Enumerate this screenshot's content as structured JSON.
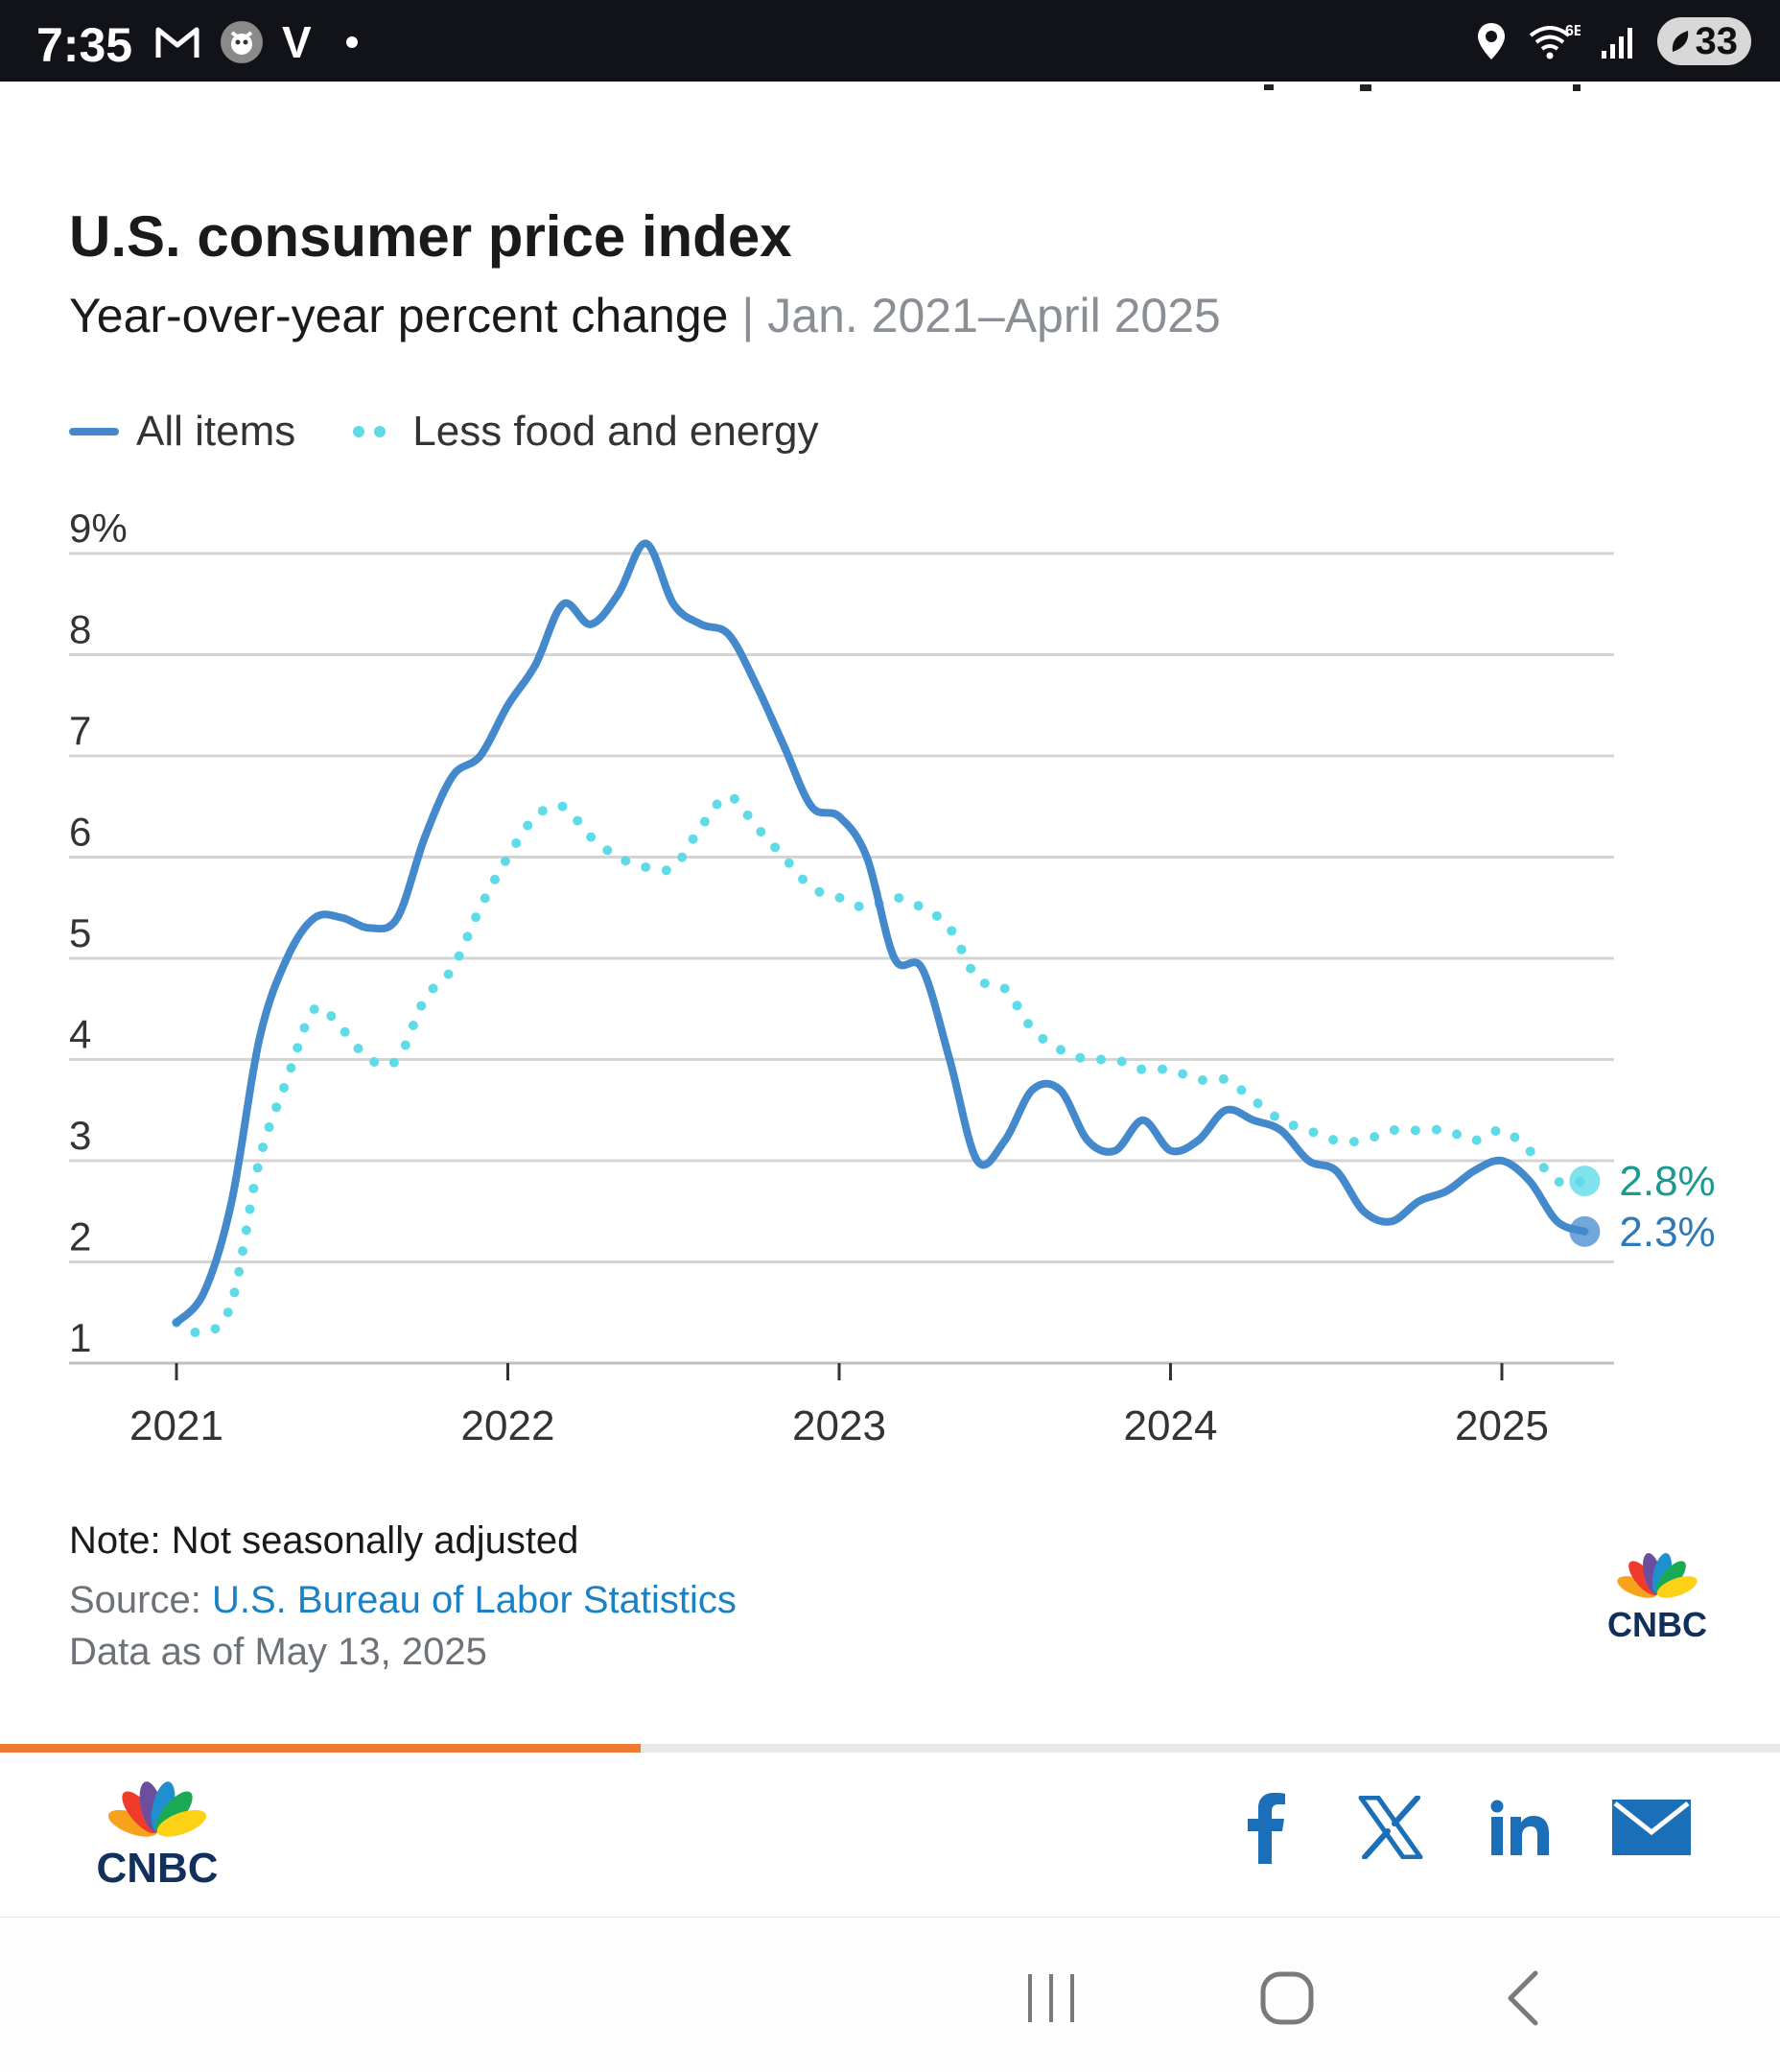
{
  "status_bar": {
    "time": "7:35",
    "carrier_mark": "V",
    "network": "6E",
    "battery": "33",
    "icons": [
      "gmail-icon",
      "app-notification-icon",
      "location-icon",
      "wifi-icon",
      "signal-icon",
      "battery-saver-icon"
    ]
  },
  "chart": {
    "title": "U.S. consumer price index",
    "subtitle": "Year-over-year percent change",
    "subtitle_separator": "|",
    "date_range": "Jan. 2021–April 2025",
    "legend": [
      "All items",
      "Less food and energy"
    ],
    "note": "Note: Not seasonally adjusted",
    "source_label": "Source:",
    "source_name": "U.S. Bureau of Labor Statistics",
    "as_of": "Data as of May 13, 2025"
  },
  "chart_data": {
    "type": "line",
    "title": "U.S. consumer price index",
    "subtitle": "Year-over-year percent change | Jan. 2021–April 2025",
    "xlabel": "",
    "ylabel": "",
    "x_start": "2021-01",
    "x_end": "2025-04",
    "x_ticks": [
      "2021",
      "2022",
      "2023",
      "2024",
      "2025"
    ],
    "y_ticks": [
      "1",
      "2",
      "3",
      "4",
      "5",
      "6",
      "7",
      "8",
      "9%"
    ],
    "ylim": [
      1,
      9
    ],
    "grid": true,
    "legend_position": "top-left",
    "months": [
      "2021-01",
      "2021-02",
      "2021-03",
      "2021-04",
      "2021-05",
      "2021-06",
      "2021-07",
      "2021-08",
      "2021-09",
      "2021-10",
      "2021-11",
      "2021-12",
      "2022-01",
      "2022-02",
      "2022-03",
      "2022-04",
      "2022-05",
      "2022-06",
      "2022-07",
      "2022-08",
      "2022-09",
      "2022-10",
      "2022-11",
      "2022-12",
      "2023-01",
      "2023-02",
      "2023-03",
      "2023-04",
      "2023-05",
      "2023-06",
      "2023-07",
      "2023-08",
      "2023-09",
      "2023-10",
      "2023-11",
      "2023-12",
      "2024-01",
      "2024-02",
      "2024-03",
      "2024-04",
      "2024-05",
      "2024-06",
      "2024-07",
      "2024-08",
      "2024-09",
      "2024-10",
      "2024-11",
      "2024-12",
      "2025-01",
      "2025-02",
      "2025-03",
      "2025-04"
    ],
    "series": [
      {
        "name": "All items",
        "color": "#4389cc",
        "style": "solid",
        "values": [
          1.4,
          1.7,
          2.6,
          4.2,
          5.0,
          5.4,
          5.4,
          5.3,
          5.4,
          6.2,
          6.8,
          7.0,
          7.5,
          7.9,
          8.5,
          8.3,
          8.6,
          9.1,
          8.5,
          8.3,
          8.2,
          7.7,
          7.1,
          6.5,
          6.4,
          6.0,
          5.0,
          4.9,
          4.0,
          3.0,
          3.2,
          3.7,
          3.7,
          3.2,
          3.1,
          3.4,
          3.1,
          3.2,
          3.5,
          3.4,
          3.3,
          3.0,
          2.9,
          2.5,
          2.4,
          2.6,
          2.7,
          2.9,
          3.0,
          2.8,
          2.4,
          2.3
        ],
        "end_label": "2.3%"
      },
      {
        "name": "Less food and energy",
        "color": "#5fdbe8",
        "style": "dotted",
        "values": [
          1.4,
          1.3,
          1.6,
          3.0,
          3.8,
          4.5,
          4.3,
          4.0,
          4.0,
          4.6,
          4.9,
          5.5,
          6.0,
          6.4,
          6.5,
          6.2,
          6.0,
          5.9,
          5.9,
          6.3,
          6.6,
          6.3,
          6.0,
          5.7,
          5.6,
          5.5,
          5.6,
          5.5,
          5.3,
          4.8,
          4.7,
          4.3,
          4.1,
          4.0,
          4.0,
          3.9,
          3.9,
          3.8,
          3.8,
          3.6,
          3.4,
          3.3,
          3.2,
          3.2,
          3.3,
          3.3,
          3.3,
          3.2,
          3.3,
          3.1,
          2.8,
          2.8
        ],
        "end_label": "2.8%"
      }
    ]
  },
  "progress": {
    "value_percent": 36
  },
  "footer": {
    "brand": "CNBC",
    "share_buttons": [
      "facebook",
      "x",
      "linkedin",
      "email"
    ],
    "brand_colors": [
      "#f7a21b",
      "#ef3b2b",
      "#6c4e9f",
      "#1f8fd0",
      "#1aaa55",
      "#fcd116"
    ]
  }
}
